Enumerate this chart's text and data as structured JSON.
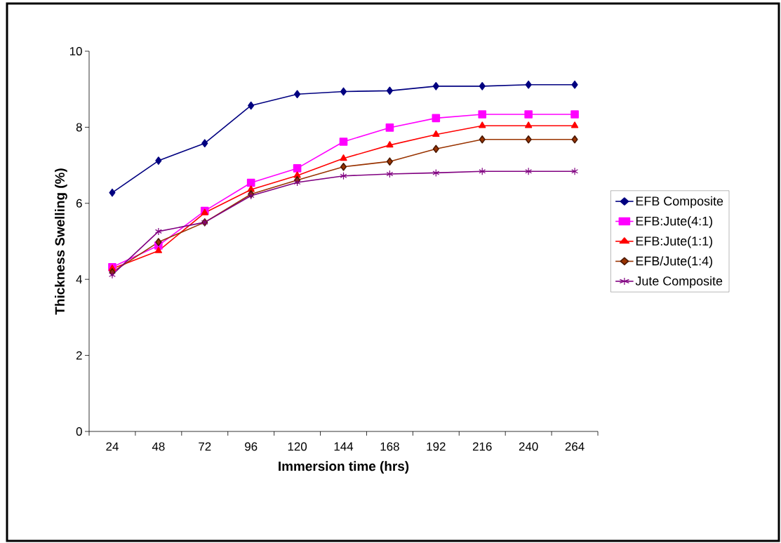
{
  "chart_data": {
    "type": "line",
    "xlabel": "Immersion time (hrs)",
    "ylabel": "Thickness Swelling (%)",
    "categories": [
      "24",
      "48",
      "72",
      "96",
      "120",
      "144",
      "168",
      "192",
      "216",
      "240",
      "264"
    ],
    "ylim": [
      0,
      10
    ],
    "yticks": [
      0,
      2,
      4,
      6,
      8,
      10
    ],
    "legend": "right",
    "grid": false,
    "series": [
      {
        "name": "EFB Composite",
        "color": "#000080",
        "marker": "diamond",
        "values": [
          6.28,
          7.12,
          7.58,
          8.57,
          8.87,
          8.94,
          8.96,
          9.08,
          9.08,
          9.12,
          9.12
        ]
      },
      {
        "name": "EFB:Jute(4:1)",
        "color": "#ff00ff",
        "marker": "square",
        "values": [
          4.32,
          4.89,
          5.8,
          6.54,
          6.92,
          7.62,
          7.99,
          8.24,
          8.34,
          8.34,
          8.34
        ]
      },
      {
        "name": "EFB:Jute(1:1)",
        "color": "#ff0000",
        "marker": "triangle",
        "values": [
          4.28,
          4.75,
          5.75,
          6.36,
          6.73,
          7.18,
          7.53,
          7.81,
          8.04,
          8.04,
          8.04
        ]
      },
      {
        "name": "EFB/Jute(1:4)",
        "color": "#993300",
        "marker": "diamond",
        "values": [
          4.19,
          4.98,
          5.5,
          6.24,
          6.61,
          6.96,
          7.1,
          7.43,
          7.68,
          7.68,
          7.68
        ]
      },
      {
        "name": "Jute Composite",
        "color": "#800080",
        "marker": "cross",
        "values": [
          4.12,
          5.26,
          5.5,
          6.2,
          6.55,
          6.72,
          6.77,
          6.8,
          6.84,
          6.84,
          6.84
        ]
      }
    ]
  }
}
